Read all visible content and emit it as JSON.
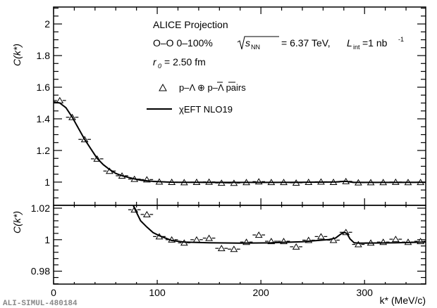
{
  "chart_data": {
    "type": "scatter",
    "watermark": "ALI-SIMUL-480184",
    "text": {
      "title": "ALICE Projection",
      "system": "O–O 0–100%",
      "sqrt_label": "s",
      "sqrt_sub": "NN",
      "energy": "= 6.37 TeV,",
      "lumi_label": "L",
      "lumi_sub": "int",
      "lumi_value": "=1 nb",
      "lumi_exp": "-1",
      "radius_label": "r",
      "radius_sub": "0",
      "radius_value": "= 2.50 fm"
    },
    "legend": {
      "placement": "top-center",
      "entries": [
        {
          "marker": "open-triangle",
          "label": "p–Λ ⊕ p–Λ pairs"
        },
        {
          "marker": "line",
          "label": "χEFT NLO19"
        }
      ]
    },
    "xlabel": "k* (MeV/c)",
    "ylabel": "C(k*)",
    "xlim": [
      0,
      359
    ],
    "xticks": [
      0,
      100,
      200,
      300
    ],
    "panels": [
      {
        "name": "main",
        "ylim": [
          0.853,
          2.107
        ],
        "yticks": [
          1,
          1.2,
          1.4,
          1.6,
          1.8,
          2
        ],
        "ytick_labels": [
          "1",
          "1.2",
          "1.4",
          "1.6",
          "1.8",
          "2"
        ]
      },
      {
        "name": "zoom",
        "ylim": [
          0.9718,
          1.0218
        ],
        "yticks": [
          0.98,
          1,
          1.02
        ],
        "ytick_labels": [
          "0.98",
          "1",
          "1.02"
        ]
      }
    ],
    "series": [
      {
        "name": "p–Λ ⊕ p–Λ pairs",
        "kind": "points",
        "x": [
          6,
          18,
          30,
          42,
          54,
          66,
          78,
          90,
          102,
          114,
          126,
          138,
          150,
          162,
          174,
          186,
          198,
          210,
          222,
          234,
          246,
          258,
          270,
          282,
          294,
          306,
          318,
          330,
          342,
          354
        ],
        "y": [
          1.516,
          1.41,
          1.27,
          1.147,
          1.07,
          1.04,
          1.019,
          1.016,
          1.002,
          1.0,
          0.998,
          1.0,
          1.001,
          0.9945,
          0.994,
          0.9985,
          1.003,
          0.999,
          0.999,
          0.9955,
          0.9997,
          1.002,
          0.9997,
          1.0047,
          0.997,
          0.998,
          0.9985,
          1.0003,
          0.9985,
          0.999
        ],
        "xerr": 6
      },
      {
        "name": "χEFT NLO19",
        "kind": "line",
        "x": [
          0,
          6,
          12,
          18,
          24,
          30,
          36,
          42,
          48,
          54,
          60,
          66,
          72,
          78,
          84,
          90,
          96,
          102,
          108,
          114,
          126,
          150,
          180,
          210,
          240,
          265,
          272,
          277,
          280,
          283,
          286,
          290,
          295,
          300,
          330,
          359
        ],
        "y": [
          1.507,
          1.5,
          1.47,
          1.41,
          1.34,
          1.27,
          1.21,
          1.15,
          1.11,
          1.08,
          1.055,
          1.04,
          1.03,
          1.02,
          1.012,
          1.008,
          1.0045,
          1.0025,
          1.001,
          0.9995,
          0.9985,
          0.998,
          0.9978,
          0.998,
          0.9987,
          1.0,
          1.001,
          1.0035,
          1.0047,
          1.004,
          1.0005,
          0.998,
          0.9978,
          0.9978,
          0.998,
          0.9985
        ]
      }
    ]
  }
}
